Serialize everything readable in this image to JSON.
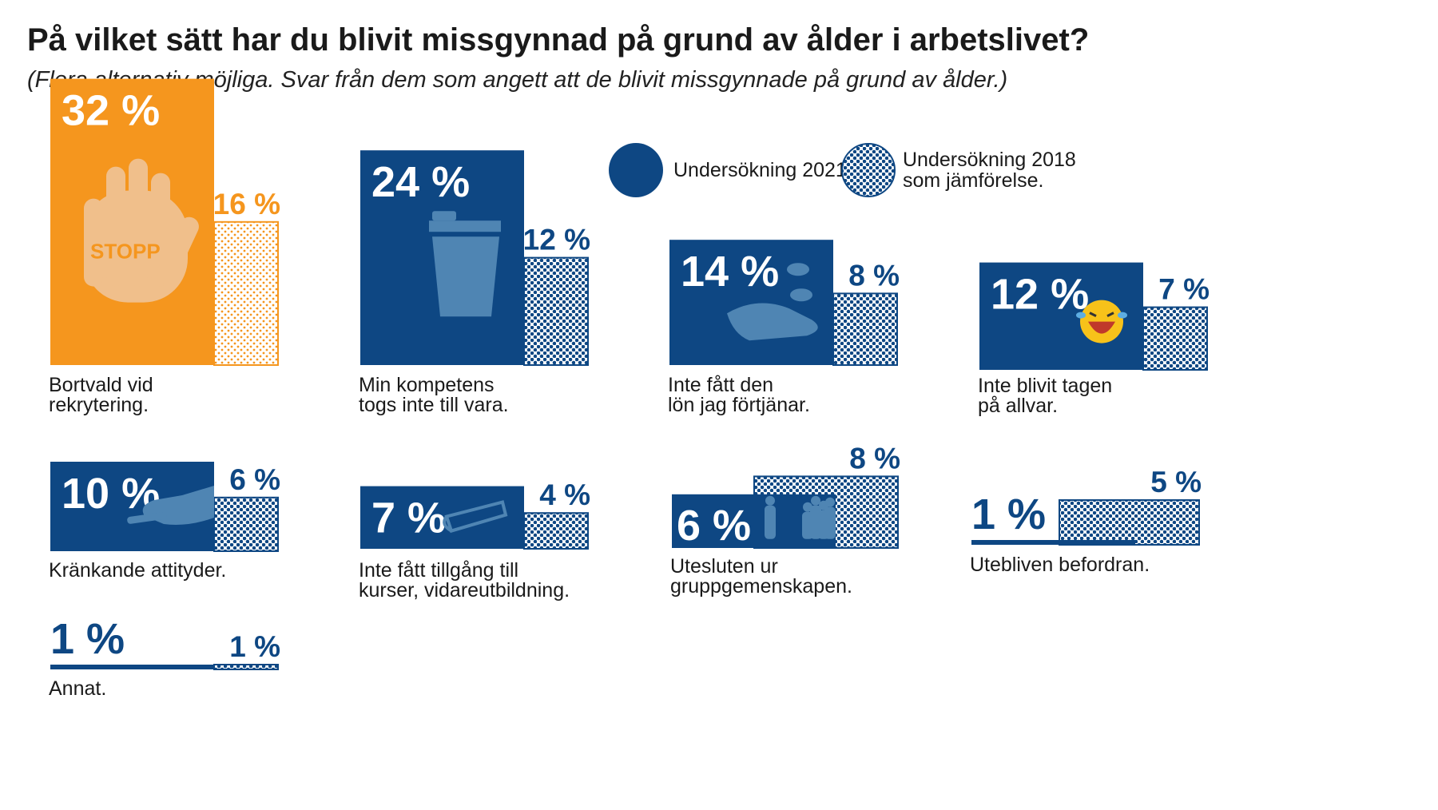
{
  "colors": {
    "primary": "#0e4783",
    "accent": "#f5961e",
    "icon_light": "#f0bf8b",
    "icon_blue": "#4f85b3"
  },
  "chart_data": {
    "type": "bar",
    "title": "På vilket sätt har du blivit missgynnad på grund av ålder i arbetslivet?",
    "subtitle": "(Flera alternativ möjliga. Svar från dem som angett att de blivit missgynnade på grund av ålder.)",
    "legend": [
      {
        "label": "Undersökning 2021.",
        "style": "solid"
      },
      {
        "label_lines": [
          "Undersökning 2018",
          "som jämförelse."
        ],
        "style": "dotted"
      }
    ],
    "categories": [
      {
        "label_lines": [
          "Bortvald vid",
          "rekrytering."
        ],
        "v2021": 32,
        "v2018": 16,
        "v2021_label": "32 %",
        "v2018_label": "16 %",
        "icon": "stop-hand-icon",
        "icon_text": "STOPP",
        "highlight": true
      },
      {
        "label_lines": [
          "Min kompetens",
          "togs inte till vara."
        ],
        "v2021": 24,
        "v2018": 12,
        "v2021_label": "24 %",
        "v2018_label": "12 %",
        "icon": "trash-can-icon"
      },
      {
        "label_lines": [
          "Inte fått den",
          "lön jag förtjänar."
        ],
        "v2021": 14,
        "v2018": 8,
        "v2021_label": "14 %",
        "v2018_label": "8 %",
        "icon": "hand-coins-icon"
      },
      {
        "label_lines": [
          "Inte blivit tagen",
          "på allvar."
        ],
        "v2021": 12,
        "v2018": 7,
        "v2021_label": "12 %",
        "v2018_label": "7 %",
        "icon": "laughing-emoji-icon"
      },
      {
        "label_lines": [
          "Kränkande attityder."
        ],
        "v2021": 10,
        "v2018": 6,
        "v2021_label": "10 %",
        "v2018_label": "6 %",
        "icon": "pointing-hand-icon"
      },
      {
        "label_lines": [
          "Inte fått tillgång till",
          "kurser, vidareutbildning."
        ],
        "v2021": 7,
        "v2018": 4,
        "v2021_label": "7 %",
        "v2018_label": "4 %",
        "icon": "book-icon"
      },
      {
        "label_lines": [
          "Utesluten ur",
          "gruppgemenskapen."
        ],
        "v2021": 6,
        "v2018": 8,
        "v2021_label": "6 %",
        "v2018_label": "8 %",
        "icon": "people-group-icon"
      },
      {
        "label_lines": [
          "Utebliven befordran."
        ],
        "v2021": 1,
        "v2018": 5,
        "v2021_label": "1 %",
        "v2018_label": "5 %"
      },
      {
        "label_lines": [
          "Annat."
        ],
        "v2021": 1,
        "v2018": 1,
        "v2021_label": "1 %",
        "v2018_label": "1 %"
      }
    ]
  }
}
